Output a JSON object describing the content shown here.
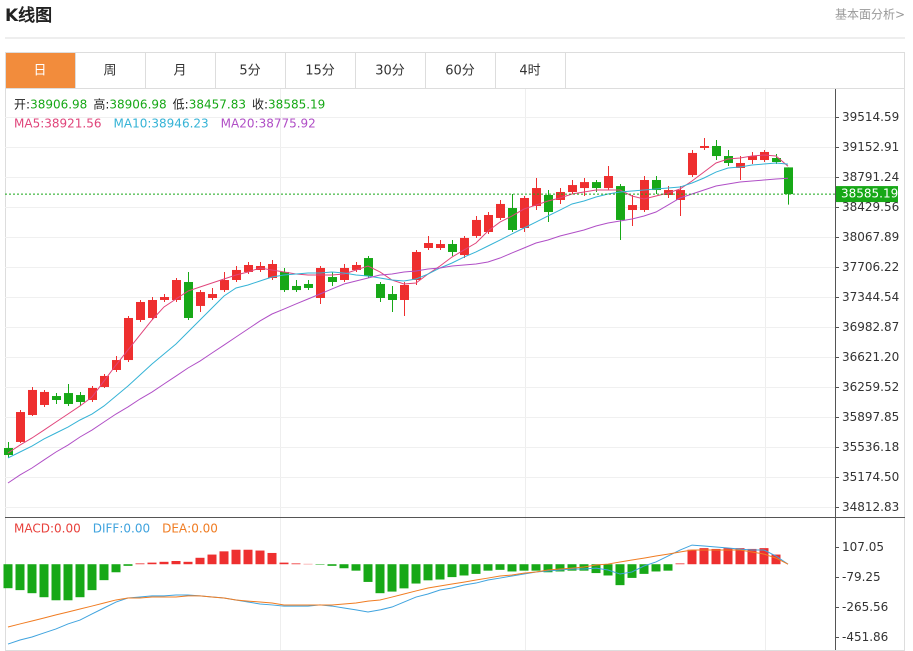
{
  "header": {
    "title": "K线图",
    "link": "基本面分析>"
  },
  "tabs": [
    "日",
    "周",
    "月",
    "5分",
    "15分",
    "30分",
    "60分",
    "4时"
  ],
  "active_tab": 0,
  "chart_data": [
    {
      "type": "candlestick",
      "quote_labels": [
        "开",
        "高",
        "低",
        "收"
      ],
      "quote_separator": ":",
      "legend_separator": ": ",
      "up_color": "#ee2f2f",
      "down_color": "#17a817",
      "quote_color": "#17a817",
      "ylim": [
        34691.2,
        39840.2
      ],
      "yticks": [
        39514.59,
        39152.91,
        38791.24,
        38429.56,
        38067.89,
        37706.22,
        37344.54,
        36982.87,
        {
          "value": 36621.2,
          "label": "36621.20"
        },
        36259.52,
        35897.85,
        35536.18,
        {
          "value": 35174.5,
          "label": "35174.50"
        },
        34812.83
      ],
      "grid": true,
      "open": [
        35523,
        35596,
        35921,
        36042,
        36150,
        36186,
        36162,
        36102,
        36259,
        36464,
        36584,
        37067,
        37091,
        37308,
        37308,
        37525,
        37236,
        37332,
        37428,
        37549,
        37646,
        37670,
        37573,
        37646,
        37477,
        37501,
        37332,
        37585,
        37549,
        37670,
        37814,
        37501,
        37380,
        37308,
        37549,
        37935,
        37935,
        37983,
        37850,
        38080,
        38128,
        38297,
        38417,
        38176,
        38441,
        38574,
        38514,
        38610,
        38658,
        38730,
        38658,
        38682,
        38393,
        38393,
        38755,
        38574,
        38514,
        38815,
        39141,
        39165,
        39044,
        38900,
        38996,
        38996,
        39020,
        38906.98
      ],
      "high": [
        35596,
        35981,
        36259,
        36223,
        36186,
        36295,
        36199,
        36271,
        36416,
        36633,
        37115,
        37308,
        37344,
        37380,
        37573,
        37646,
        37428,
        37453,
        37646,
        37718,
        37766,
        37766,
        37790,
        37694,
        37549,
        37549,
        37718,
        37646,
        37742,
        37766,
        37838,
        37525,
        37477,
        37525,
        37911,
        38080,
        38031,
        38031,
        38080,
        38321,
        38369,
        38514,
        38586,
        38562,
        38779,
        38634,
        38658,
        38755,
        38779,
        38755,
        38924,
        38706,
        38574,
        38803,
        38803,
        38682,
        38682,
        39117,
        39261,
        39237,
        39117,
        39044,
        39093,
        39117,
        39069,
        38906.98
      ],
      "low": [
        35403,
        35584,
        35909,
        36018,
        36054,
        36030,
        36030,
        36078,
        36247,
        36440,
        36560,
        37043,
        37067,
        37284,
        37284,
        37067,
        37163,
        37308,
        37404,
        37525,
        37622,
        37646,
        37549,
        37404,
        37404,
        37428,
        37260,
        37477,
        37525,
        37646,
        37573,
        37284,
        37163,
        37115,
        37489,
        37911,
        37911,
        37838,
        37814,
        38056,
        38104,
        38273,
        38128,
        38128,
        38393,
        38248,
        38466,
        38586,
        38562,
        38610,
        38634,
        38031,
        38200,
        38369,
        38586,
        38538,
        38321,
        38791,
        39117,
        38996,
        38924,
        38755,
        38948,
        38972,
        38948,
        38457.83
      ],
      "close": [
        35439,
        35957,
        36223,
        36199,
        36102,
        36054,
        36078,
        36247,
        36392,
        36584,
        37091,
        37284,
        37308,
        37344,
        37549,
        37091,
        37404,
        37380,
        37549,
        37670,
        37730,
        37718,
        37742,
        37428,
        37428,
        37453,
        37694,
        37525,
        37694,
        37730,
        37597,
        37332,
        37308,
        37489,
        37887,
        37995,
        37983,
        37887,
        38056,
        38273,
        38333,
        38466,
        38152,
        38538,
        38658,
        38369,
        38610,
        38694,
        38730,
        38658,
        38803,
        38273,
        38453,
        38755,
        38634,
        38634,
        38634,
        39081,
        39165,
        39044,
        38960,
        38960,
        39044,
        39093,
        38972,
        38585.19
      ],
      "series": [
        {
          "name": "MA5",
          "color": "#e0457b",
          "values": [
            35463,
            35559,
            35644,
            35740,
            35837,
            35933,
            36030,
            36138,
            36331,
            36524,
            36705,
            36886,
            37067,
            37224,
            37320,
            37416,
            37465,
            37513,
            37561,
            37609,
            37646,
            37694,
            37670,
            37646,
            37621,
            37609,
            37609,
            37609,
            37621,
            37670,
            37718,
            37646,
            37549,
            37501,
            37513,
            37621,
            37718,
            37826,
            37911,
            37995,
            38140,
            38248,
            38321,
            38405,
            38453,
            38502,
            38538,
            38586,
            38610,
            38634,
            38634,
            38634,
            38562,
            38526,
            38562,
            38598,
            38646,
            38743,
            38851,
            38960,
            39008,
            39020,
            39044,
            39056,
            39044,
            38921.56
          ]
        },
        {
          "name": "MA10",
          "color": "#35b3d6",
          "values": [
            35403,
            35475,
            35547,
            35632,
            35704,
            35776,
            35861,
            35933,
            36030,
            36150,
            36271,
            36403,
            36536,
            36657,
            36777,
            36922,
            37067,
            37211,
            37356,
            37453,
            37489,
            37537,
            37585,
            37609,
            37621,
            37633,
            37633,
            37646,
            37633,
            37609,
            37597,
            37573,
            37549,
            37537,
            37561,
            37621,
            37694,
            37754,
            37826,
            37887,
            37959,
            38031,
            38104,
            38176,
            38248,
            38321,
            38393,
            38466,
            38502,
            38550,
            38586,
            38610,
            38622,
            38634,
            38646,
            38658,
            38670,
            38719,
            38779,
            38851,
            38900,
            38912,
            38936,
            38948,
            38960,
            38946.23
          ]
        },
        {
          "name": "MA20",
          "color": "#b04fc6",
          "values": [
            35101,
            35198,
            35282,
            35379,
            35475,
            35559,
            35656,
            35740,
            35837,
            35933,
            36018,
            36114,
            36198,
            36295,
            36391,
            36488,
            36572,
            36669,
            36765,
            36862,
            36958,
            37055,
            37139,
            37199,
            37260,
            37320,
            37380,
            37441,
            37501,
            37537,
            37573,
            37609,
            37621,
            37646,
            37658,
            37682,
            37694,
            37718,
            37730,
            37742,
            37766,
            37814,
            37875,
            37935,
            37995,
            38031,
            38080,
            38116,
            38152,
            38200,
            38236,
            38261,
            38285,
            38321,
            38369,
            38453,
            38538,
            38586,
            38634,
            38683,
            38707,
            38731,
            38743,
            38755,
            38767,
            38775.92
          ]
        }
      ]
    },
    {
      "type": "macd",
      "legend_separator": ":",
      "ylim": [
        -533,
        281
      ],
      "yticks": [
        107.05,
        -79.25,
        -265.56,
        -451.86
      ],
      "up_color": "#ee2f2f",
      "down_color": "#17a817",
      "series": [
        {
          "name": "MACD",
          "color": "#e8413c",
          "latest": {
            "value": 0,
            "label": "0.00"
          },
          "values": [
            -149,
            -161,
            -180,
            -205,
            -224,
            -224,
            -205,
            -161,
            -99,
            -50,
            -10,
            5,
            10,
            15,
            20,
            15,
            40,
            60,
            80,
            90,
            90,
            85,
            70,
            10,
            5,
            2,
            -3,
            -10,
            -25,
            -40,
            -110,
            -180,
            -170,
            -150,
            -120,
            -100,
            -95,
            -80,
            -70,
            -60,
            -40,
            -35,
            -45,
            -40,
            -40,
            -50,
            -45,
            -40,
            -40,
            -55,
            -70,
            -130,
            -85,
            -60,
            -45,
            -40,
            5,
            90,
            100,
            95,
            100,
            100,
            95,
            100,
            60,
            0
          ]
        },
        {
          "name": "DIFF",
          "color": "#3fa3de",
          "latest": {
            "value": 0,
            "label": "0.00"
          },
          "values": [
            -496,
            -471,
            -452,
            -427,
            -402,
            -371,
            -347,
            -309,
            -272,
            -235,
            -210,
            -204,
            -197,
            -197,
            -191,
            -191,
            -197,
            -204,
            -210,
            -222,
            -235,
            -247,
            -253,
            -260,
            -260,
            -260,
            -253,
            -260,
            -272,
            -284,
            -297,
            -284,
            -266,
            -235,
            -204,
            -185,
            -160,
            -148,
            -129,
            -117,
            -98,
            -86,
            -73,
            -61,
            -48,
            -42,
            -36,
            -30,
            -30,
            -24,
            -36,
            -61,
            -48,
            -11,
            14,
            51,
            88,
            119,
            113,
            107,
            101,
            94,
            88,
            88,
            51,
            0
          ]
        },
        {
          "name": "DEA",
          "color": "#f07c22",
          "latest": {
            "value": 0,
            "label": "0.00"
          },
          "values": [
            -390,
            -371,
            -353,
            -334,
            -315,
            -297,
            -278,
            -260,
            -241,
            -222,
            -210,
            -210,
            -204,
            -204,
            -204,
            -197,
            -197,
            -204,
            -210,
            -222,
            -229,
            -235,
            -241,
            -253,
            -253,
            -253,
            -253,
            -253,
            -247,
            -241,
            -229,
            -222,
            -204,
            -185,
            -166,
            -148,
            -135,
            -123,
            -111,
            -98,
            -86,
            -73,
            -67,
            -55,
            -48,
            -36,
            -30,
            -24,
            -17,
            -5,
            1,
            14,
            26,
            38,
            51,
            63,
            76,
            88,
            88,
            88,
            88,
            88,
            76,
            63,
            38,
            0
          ]
        }
      ]
    }
  ]
}
